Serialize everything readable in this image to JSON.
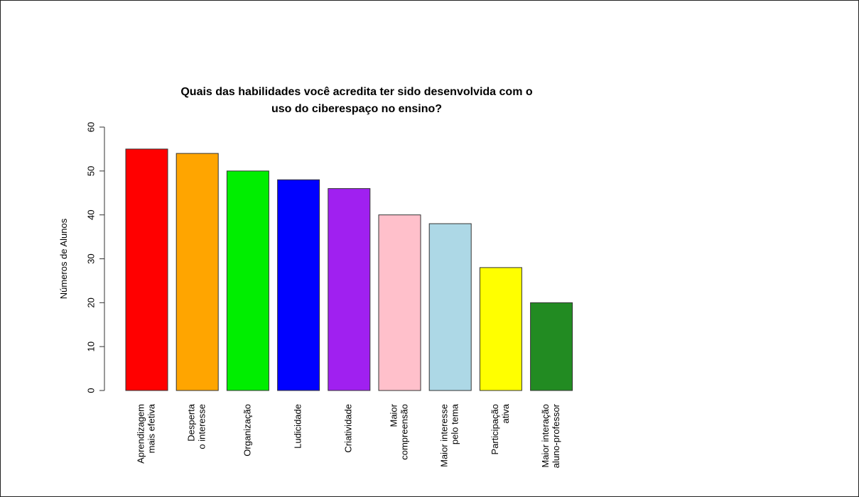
{
  "chart_data": {
    "type": "bar",
    "title": [
      "Quais das habilidades você acredita ter sido desenvolvida com o",
      "uso do ciberespaço no ensino?"
    ],
    "xlabel": "",
    "ylabel": "Números de Alunos",
    "ylim": [
      0,
      60
    ],
    "yticks": [
      0,
      10,
      20,
      30,
      40,
      50,
      60
    ],
    "grid": false,
    "legend": "none",
    "categories": [
      [
        "Aprendizagem",
        "mais efetiva"
      ],
      [
        "Desperta",
        "o interesse"
      ],
      [
        "Organização"
      ],
      [
        "Ludicidade"
      ],
      [
        "Criatividade"
      ],
      [
        "Maior",
        "compreensão"
      ],
      [
        "Maior interesse",
        "pelo tema"
      ],
      [
        "Participação",
        "ativa"
      ],
      [
        "Maior interação",
        "aluno-professor"
      ]
    ],
    "values": [
      55,
      54,
      50,
      48,
      46,
      40,
      38,
      28,
      20
    ],
    "colors": [
      "#ff0000",
      "#ffa500",
      "#00ee00",
      "#0000ff",
      "#a020f0",
      "#ffc0cb",
      "#add8e6",
      "#ffff00",
      "#228b22"
    ]
  }
}
